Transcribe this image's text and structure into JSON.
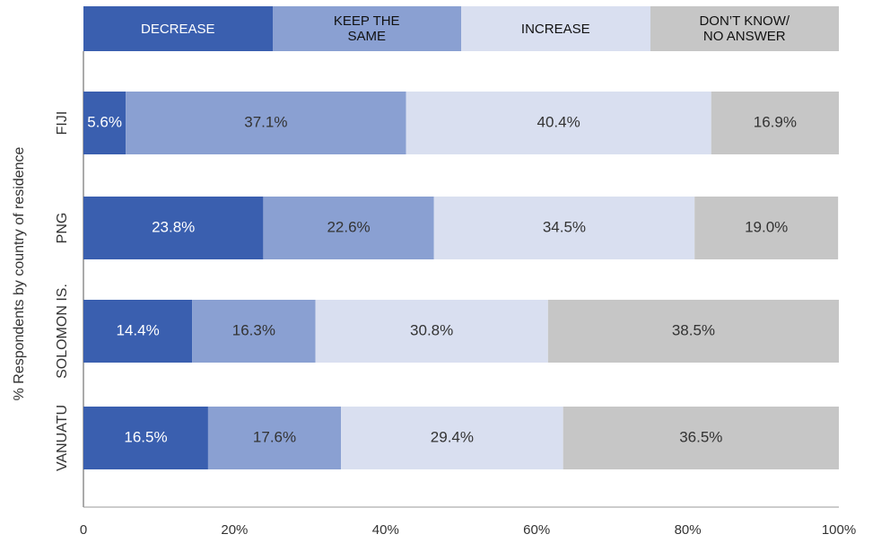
{
  "chart_data": {
    "type": "stacked_barh",
    "ylabel": "% Respondents by country of residence",
    "categories": [
      "FIJI",
      "PNG",
      "SOLOMON IS.",
      "VANUATU"
    ],
    "series": [
      {
        "name": "DECREASE",
        "color": "#3a5faf",
        "values": [
          5.6,
          23.8,
          14.4,
          16.5
        ],
        "value_labels": [
          "5.6%",
          "23.8%",
          "14.4%",
          "16.5%"
        ]
      },
      {
        "name": "KEEP THE SAME",
        "color": "#8aa0d2",
        "values": [
          37.1,
          22.6,
          16.3,
          17.6
        ],
        "value_labels": [
          "37.1%",
          "22.6%",
          "16.3%",
          "17.6%"
        ]
      },
      {
        "name": "INCREASE",
        "color": "#d9dff0",
        "values": [
          40.4,
          34.5,
          30.8,
          29.4
        ],
        "value_labels": [
          "40.4%",
          "34.5%",
          "30.8%",
          "29.4%"
        ]
      },
      {
        "name": "DON’T KNOW/ NO ANSWER",
        "color": "#c6c6c6",
        "values": [
          16.9,
          19.0,
          38.5,
          36.5
        ],
        "value_labels": [
          "16.9%",
          "19.0%",
          "38.5%",
          "36.5%"
        ]
      }
    ],
    "xlim": [
      0,
      100
    ],
    "xticks": [
      0,
      {
        "value": 20,
        "label": "20%"
      },
      {
        "value": 40,
        "label": "40%"
      },
      {
        "value": 60,
        "label": "60%"
      },
      {
        "value": 80,
        "label": "80%"
      },
      {
        "value": 100,
        "label": "100%"
      }
    ],
    "legend": "top",
    "grid": false
  }
}
